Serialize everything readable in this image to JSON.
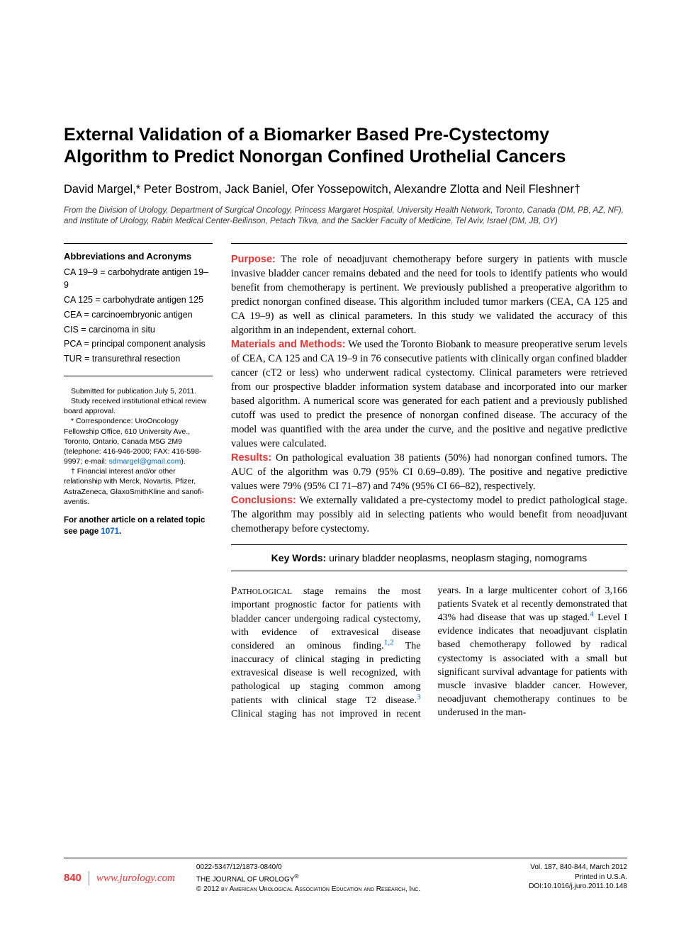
{
  "title": "External Validation of a Biomarker Based Pre-Cystectomy Algorithm to Predict Nonorgan Confined Urothelial Cancers",
  "authors": "David Margel,* Peter Bostrom, Jack Baniel, Ofer Yossepowitch, Alexandre Zlotta and Neil Fleshner†",
  "affiliation": "From the Division of Urology, Department of Surgical Oncology, Princess Margaret Hospital, University Health Network, Toronto, Canada (DM, PB, AZ, NF), and Institute of Urology, Rabin Medical Center-Beilinson, Petach Tikva, and the Sackler Faculty of Medicine, Tel Aviv, Israel (DM, JB, OY)",
  "abbrev": {
    "heading": "Abbreviations and Acronyms",
    "items": [
      "CA 19–9 = carbohydrate antigen 19–9",
      "CA 125 = carbohydrate antigen 125",
      "CEA = carcinoembryonic antigen",
      "CIS = carcinoma in situ",
      "PCA = principal component analysis",
      "TUR = transurethral resection"
    ]
  },
  "footnotes": {
    "submitted": "Submitted for publication July 5, 2011.",
    "ethics": "Study received institutional ethical review board approval.",
    "correspondence": "* Correspondence: UroOncology Fellowship Office, 610 University Ave., Toronto, Ontario, Canada M5G 2M9 (telephone: 416-946-2000; FAX: 416-598-9997; e-mail: ",
    "email": "sdmargel@gmail.com",
    "email_suffix": ").",
    "conflict": "† Financial interest and/or other relationship with Merck, Novartis, Pfizer, AstraZeneca, GlaxoSmithKline and sanofi-aventis."
  },
  "related": {
    "text": "For another article on a related topic see page ",
    "page": "1071",
    "suffix": "."
  },
  "abstract": {
    "purpose_label": "Purpose:",
    "purpose": " The role of neoadjuvant chemotherapy before surgery in patients with muscle invasive bladder cancer remains debated and the need for tools to identify patients who would benefit from chemotherapy is pertinent. We previously published a preoperative algorithm to predict nonorgan confined disease. This algorithm included tumor markers (CEA, CA 125 and CA 19–9) as well as clinical parameters. In this study we validated the accuracy of this algorithm in an independent, external cohort.",
    "methods_label": "Materials and Methods:",
    "methods": " We used the Toronto Biobank to measure preoperative serum levels of CEA, CA 125 and CA 19–9 in 76 consecutive patients with clinically organ confined bladder cancer (cT2 or less) who underwent radical cystectomy. Clinical parameters were retrieved from our prospective bladder information system database and incorporated into our marker based algorithm. A numerical score was generated for each patient and a previously published cutoff was used to predict the presence of nonorgan confined disease. The accuracy of the model was quantified with the area under the curve, and the positive and negative predictive values were calculated.",
    "results_label": "Results:",
    "results": " On pathological evaluation 38 patients (50%) had nonorgan confined tumors. The AUC of the algorithm was 0.79 (95% CI 0.69–0.89). The positive and negative predictive values were 79% (95% CI 71–87) and 74% (95% CI 66–82), respectively.",
    "conclusions_label": "Conclusions:",
    "conclusions": " We externally validated a pre-cystectomy model to predict pathological stage. The algorithm may possibly aid in selecting patients who would benefit from neoadjuvant chemotherapy before cystectomy."
  },
  "keywords": {
    "label": "Key Words:",
    "text": " urinary bladder neoplasms, neoplasm staging, nomograms"
  },
  "body": {
    "first_word": "Pathological",
    "p1a": " stage remains the most important prognostic factor for patients with bladder cancer undergoing radical cystectomy, with evidence of extravesical disease considered an ominous finding.",
    "ref1": "1,2",
    "p1b": " The inaccuracy of clinical staging in predicting extravesical disease is well recognized, with pathological up staging common among patients with clinical stage T2 disease.",
    "ref2": "3",
    "p1c": " Clinical staging has not improved in recent years. In a large multicenter cohort of 3,166 patients Svatek et al recently demonstrated that 43% had disease that was up staged.",
    "ref3": "4",
    "p1d": " Level I evidence indicates that neoadjuvant cisplatin based chemotherapy followed by radical cystectomy is associated with a small but significant survival advantage for patients with muscle invasive bladder cancer. However, neoadjuvant chemotherapy continues to be underused in the man-"
  },
  "footer": {
    "page_num": "840",
    "url": "www.jurology.com",
    "issn": "0022-5347/12/1873-0840/0",
    "journal": "THE JOURNAL OF UROLOGY",
    "reg": "®",
    "copyright": "© 2012 by American Urological Association Education and Research, Inc.",
    "vol": "Vol. 187, 840-844, March 2012",
    "printed": "Printed in U.S.A.",
    "doi": "DOI:10.1016/j.juro.2011.10.148"
  },
  "colors": {
    "accent": "#e63434",
    "link": "#0066cc"
  }
}
